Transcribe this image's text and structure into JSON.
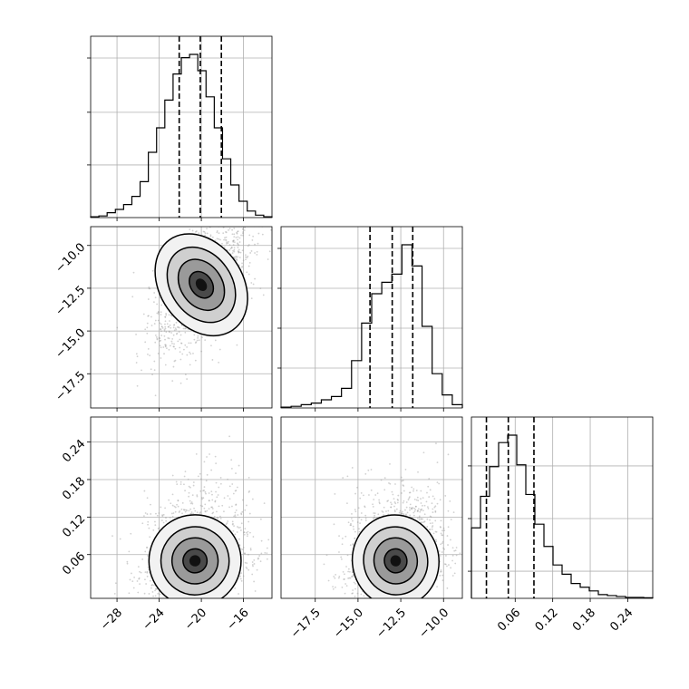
{
  "chart_data": {
    "type": "corner",
    "grid": true,
    "params": [
      {
        "range": [
          -30.5,
          -13.3
        ],
        "ticks": [
          -28,
          -24,
          -20,
          -16
        ],
        "tick_labels": [
          "−28",
          "−24",
          "−20",
          "−16"
        ],
        "hist_counts": [
          0.5,
          1,
          3,
          5,
          8,
          13,
          22,
          40,
          55,
          72,
          88,
          98,
          100,
          90,
          74,
          55,
          36,
          20,
          10,
          4,
          1.5,
          0.5
        ],
        "quantiles": [
          -22.1,
          -20.1,
          -18.1
        ],
        "hist_ticks_frac": [
          0.33,
          0.66,
          1.0
        ]
      },
      {
        "range": [
          -19.5,
          -8.9
        ],
        "ticks": [
          -17.5,
          -15.0,
          -12.5,
          -10.0
        ],
        "tick_labels": [
          "−17.5",
          "−15.0",
          "−12.5",
          "−10.0"
        ],
        "hist_counts": [
          0.5,
          1,
          2,
          3,
          5,
          7,
          12,
          29,
          52,
          70,
          77,
          82,
          100,
          87,
          50,
          21,
          8,
          2
        ],
        "quantiles": [
          -14.3,
          -13.0,
          -11.8
        ],
        "hist_ticks_frac": [
          0.25,
          0.5,
          0.75,
          1.0
        ]
      },
      {
        "range": [
          -0.01,
          0.28
        ],
        "ticks": [
          0.06,
          0.12,
          0.18,
          0.24
        ],
        "tick_labels": [
          "0.06",
          "0.12",
          "0.18",
          "0.24"
        ],
        "hist_counts": [
          38,
          55,
          71,
          84,
          88,
          72,
          56,
          40,
          28,
          18,
          13,
          8,
          6,
          4,
          2,
          1.5,
          1,
          0.5,
          0.5,
          0.3
        ],
        "quantiles": [
          0.014,
          0.049,
          0.09
        ],
        "hist_ticks_frac": [
          0.17,
          0.5,
          0.83
        ]
      }
    ],
    "panels_2d": [
      {
        "x": 0,
        "y": 1,
        "center": [
          -20.0,
          -12.3
        ],
        "spread": [
          1.7,
          1.4
        ],
        "rho": 0.55
      },
      {
        "x": 0,
        "y": 2,
        "center": [
          -20.6,
          0.05
        ],
        "spread": [
          1.9,
          0.032
        ],
        "rho": 0.2
      },
      {
        "x": 1,
        "y": 2,
        "center": [
          -12.8,
          0.05
        ],
        "spread": [
          1.1,
          0.032
        ],
        "rho": 0.2
      }
    ],
    "y_tick_params": [
      1,
      2
    ]
  }
}
